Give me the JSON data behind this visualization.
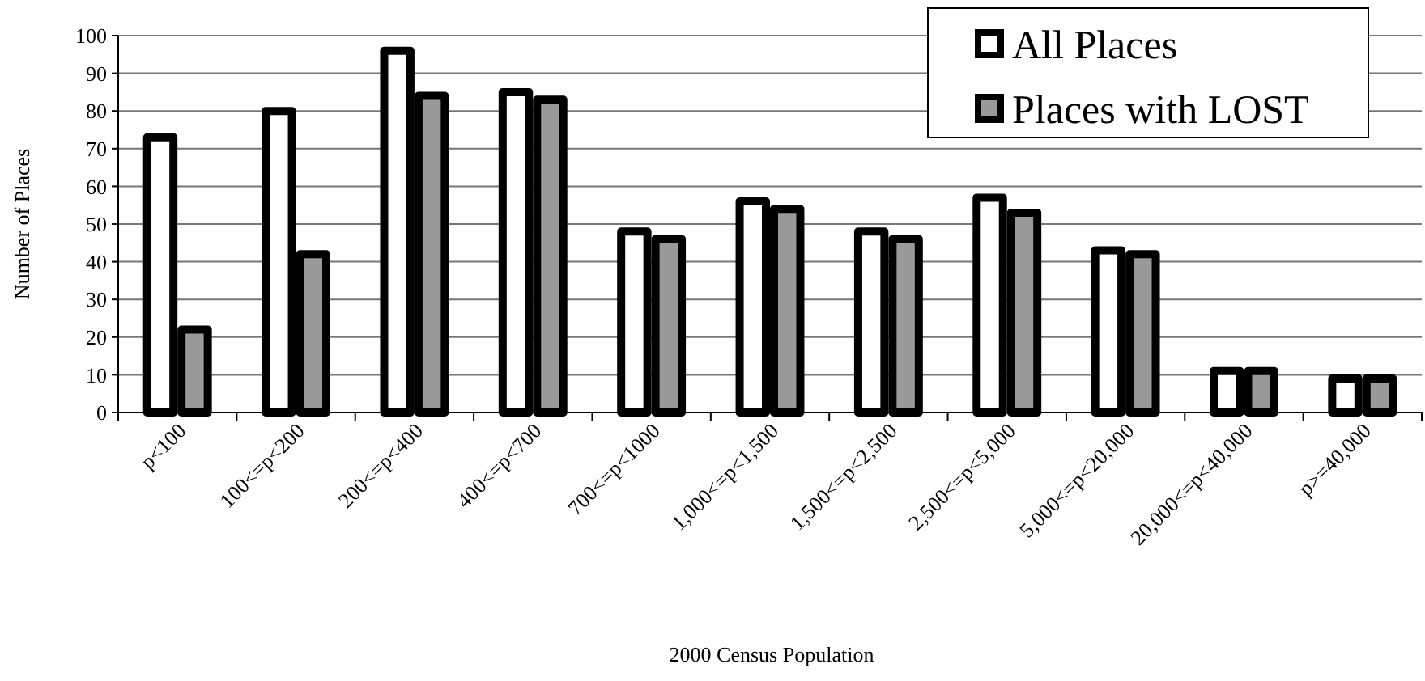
{
  "chart_data": {
    "type": "bar",
    "xlabel": "2000 Census Population",
    "ylabel": "Number of Places",
    "categories": [
      "p<100",
      "100<=p<200",
      "200<=p<400",
      "400<=p<700",
      "700<=p<1000",
      "1,000<=p<1,500",
      "1,500<=p<2,500",
      "2,500<=p<5,000",
      "5,000<=p<20,000",
      "20,000<=p<40,000",
      "p>=40,000"
    ],
    "series": [
      {
        "name": "All Places",
        "color": "#ffffff",
        "values": [
          73,
          80,
          96,
          85,
          48,
          56,
          48,
          57,
          43,
          11,
          9
        ]
      },
      {
        "name": "Places with LOST",
        "color": "#999999",
        "values": [
          22,
          42,
          84,
          83,
          46,
          54,
          46,
          53,
          42,
          11,
          9
        ]
      }
    ],
    "ylim": [
      0,
      100
    ],
    "yticks": [
      0,
      10,
      20,
      30,
      40,
      50,
      60,
      70,
      80,
      90,
      100
    ],
    "grid": "y",
    "legend": "top right"
  }
}
